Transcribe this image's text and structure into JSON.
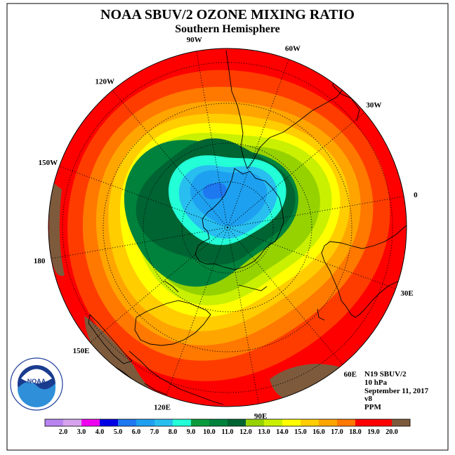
{
  "title": "NOAA SBUV/2 OZONE MIXING RATIO",
  "subtitle": "Southern Hemisphere",
  "longitude_labels": [
    {
      "text": "90W"
    },
    {
      "text": "60W"
    },
    {
      "text": "30W"
    },
    {
      "text": "0"
    },
    {
      "text": "30E"
    },
    {
      "text": "60E"
    },
    {
      "text": "90E"
    },
    {
      "text": "120E"
    },
    {
      "text": "150E"
    },
    {
      "text": "180"
    },
    {
      "text": "150W"
    },
    {
      "text": "120W"
    }
  ],
  "info": {
    "instrument": "N19 SBUV/2",
    "level": "10 hPa",
    "date": "September 11, 2017",
    "version": "v8",
    "units": "PPM"
  },
  "logo_text": "NOAA",
  "legend": {
    "colors": [
      "#b784f0",
      "#d6a4ee",
      "#f000f0",
      "#0000e6",
      "#1e78f0",
      "#1ea0f0",
      "#28bef0",
      "#23ffd7",
      "#0a9b3c",
      "#00823c",
      "#006432",
      "#96d200",
      "#c8f000",
      "#ffff00",
      "#ffcd00",
      "#ffa500",
      "#ff7800",
      "#ff0000",
      "#ff0000",
      "#7d5a3c"
    ],
    "labels": [
      "2.0",
      "3.0",
      "4.0",
      "5.0",
      "6.0",
      "7.0",
      "8.0",
      "9.0",
      "10.0",
      "11.0",
      "12.0",
      "13.0",
      "14.0",
      "15.0",
      "16.0",
      "17.0",
      "18.0",
      "19.0",
      "20.0"
    ]
  },
  "map_colors": {
    "c20": "#7d5a3c",
    "c19": "#ff0000",
    "c18": "#ff3c00",
    "c17": "#ff7800",
    "c16": "#ffa500",
    "c15": "#ffcd00",
    "c14": "#ffff00",
    "c13": "#c8f000",
    "c12": "#96d200",
    "c11": "#00823c",
    "c10": "#006432",
    "c9": "#23ffd7",
    "c8": "#28bef0",
    "c7": "#1ea0f0",
    "c6": "#1e78f0"
  }
}
